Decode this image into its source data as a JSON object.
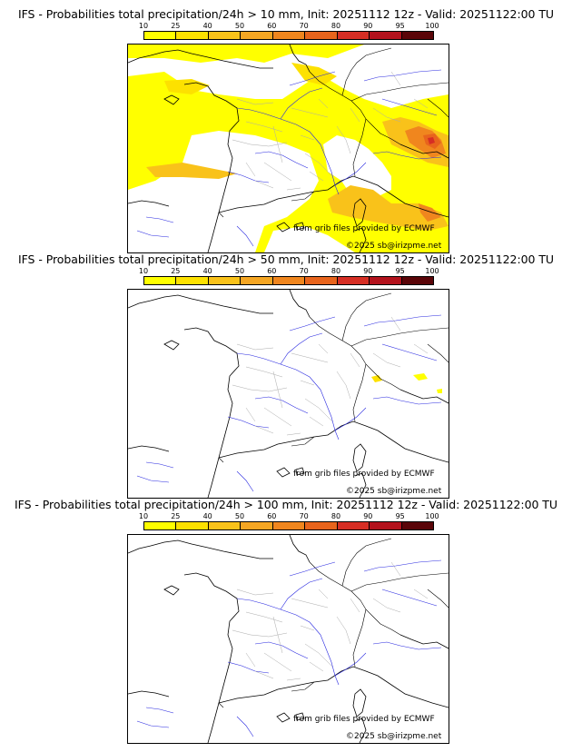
{
  "colorbar": {
    "labels": [
      "10",
      "25",
      "40",
      "50",
      "60",
      "70",
      "80",
      "90",
      "95",
      "100"
    ],
    "colors": [
      "#ffff00",
      "#fde100",
      "#f9c21a",
      "#f5a623",
      "#f0861e",
      "#e8641c",
      "#d62e24",
      "#b3121c",
      "#8a0b12",
      "#5a0508"
    ]
  },
  "panels": [
    {
      "title": "IFS - Probabilities total precipitation/24h > 10 mm, Init: 20251112 12z - Valid: 20251122:00 TU",
      "credit_grib": "from grib files provided by ECMWF",
      "credit_copy": "©2025 sb@irizpme.net"
    },
    {
      "title": "IFS - Probabilities total precipitation/24h > 50 mm, Init: 20251112 12z - Valid: 20251122:00 TU",
      "credit_grib": "from grib files provided by ECMWF",
      "credit_copy": "©2025 sb@irizpme.net"
    },
    {
      "title": "IFS - Probabilities total precipitation/24h > 100 mm, Init: 20251112 12z - Valid: 20251122:00 TU",
      "credit_grib": "from grib files provided by ECMWF",
      "credit_copy": "©2025 sb@irizpme.net"
    }
  ]
}
